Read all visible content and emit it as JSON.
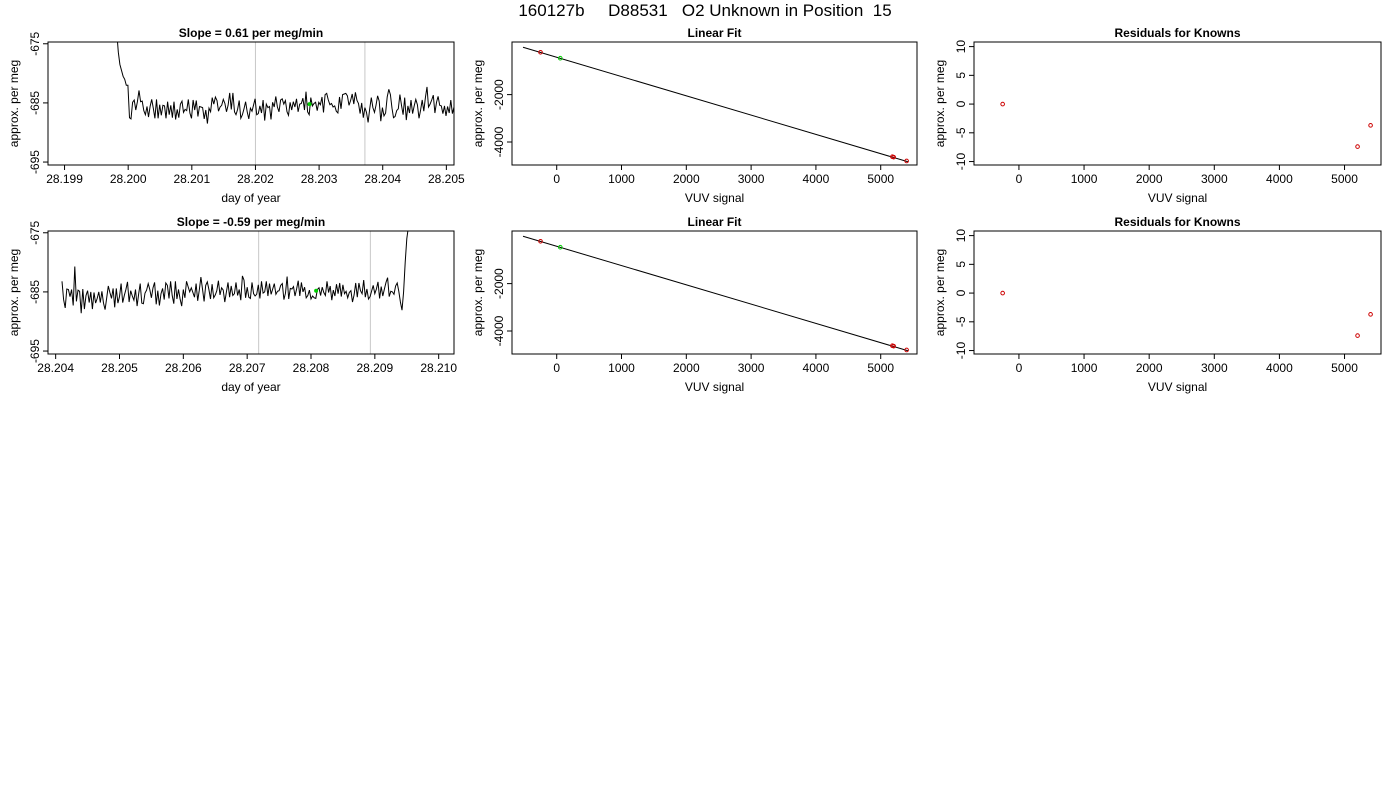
{
  "header": {
    "title": "160127b     D88531   O2 Unknown in Position  15"
  },
  "colors": {
    "line": "#000000",
    "known_point": "#cd0000",
    "unknown_point": "#00cd00",
    "marker_line": "#c8c8c8"
  },
  "chart_data": [
    {
      "type": "line",
      "title": "Slope =  0.61  per meg/min",
      "xlabel": "day of year",
      "ylabel": "approx. per meg",
      "xlim": [
        28.19874,
        28.20512
      ],
      "ylim": [
        -695.5,
        -674.7
      ],
      "xticks": [
        28.199,
        28.2,
        28.201,
        28.202,
        28.203,
        28.204,
        28.205
      ],
      "xtick_labels": [
        "28.199",
        "28.200",
        "28.201",
        "28.202",
        "28.203",
        "28.204",
        "28.205"
      ],
      "yticks": [
        -675,
        -685,
        -695
      ],
      "ytick_labels": [
        "-675",
        "-685",
        "-695"
      ],
      "vlines": [
        28.202,
        28.20372
      ],
      "series": [
        {
          "x_start": 28.19982,
          "x_step": 2.5e-05,
          "values": [
            -672.9,
            -676.4,
            -678.5,
            -679.5,
            -680.5,
            -681.0,
            -682.0,
            -682.0,
            -687.5,
            -687.7,
            -684.9,
            -684.5,
            -686.2,
            -684.8,
            -682.9,
            -684.8,
            -684.7,
            -686.3,
            -687.0,
            -685.6,
            -687.4,
            -685.6,
            -684.4,
            -685.9,
            -687.6,
            -684.4,
            -687.6,
            -685.3,
            -687.1,
            -685.4,
            -685.5,
            -687.6,
            -684.8,
            -687.0,
            -685.4,
            -687.5,
            -684.8,
            -687.8,
            -686.1,
            -687.5,
            -685.2,
            -684.7,
            -686.6,
            -686.1,
            -686.3,
            -684.4,
            -686.7,
            -687.6,
            -684.5,
            -686.2,
            -684.6,
            -687.3,
            -685.6,
            -685.7,
            -685.8,
            -687.7,
            -686.2,
            -688.5,
            -685.9,
            -686.5,
            -684.1,
            -685.2,
            -684.0,
            -684.6,
            -686.4,
            -685.7,
            -685.4,
            -684.4,
            -685.1,
            -686.5,
            -685.4,
            -683.3,
            -686.1,
            -683.3,
            -686.5,
            -687.0,
            -686.1,
            -684.6,
            -687.6,
            -687.0,
            -686.0,
            -684.8,
            -686.5,
            -687.7,
            -685.9,
            -686.4,
            -685.4,
            -684.3,
            -687.0,
            -686.8,
            -685.5,
            -686.7,
            -684.5,
            -688.0,
            -685.2,
            -685.8,
            -685.6,
            -687.8,
            -684.9,
            -685.7,
            -683.9,
            -685.7,
            -686.5,
            -684.5,
            -684.3,
            -685.2,
            -684.6,
            -686.5,
            -687.1,
            -684.9,
            -686.2,
            -684.8,
            -685.7,
            -684.3,
            -686.5,
            -685.2,
            -685.1,
            -684.2,
            -686.2,
            -683.1,
            -686.5,
            -687.0,
            -684.1,
            -685.5,
            -685.1,
            -684.9,
            -686.3,
            -684.9,
            -685.3,
            -684.0,
            -686.6,
            -683.6,
            -683.4,
            -684.5,
            -685.3,
            -685.1,
            -685.7,
            -685.5,
            -686.4,
            -686.7,
            -684.0,
            -686.0,
            -683.6,
            -683.5,
            -683.4,
            -683.8,
            -685.4,
            -684.6,
            -683.5,
            -685.2,
            -683.2,
            -684.6,
            -685.1,
            -686.8,
            -685.0,
            -687.5,
            -685.8,
            -686.6,
            -688.3,
            -686.0,
            -684.1,
            -685.8,
            -686.6,
            -685.4,
            -683.8,
            -684.7,
            -688.1,
            -685.8,
            -687.2,
            -686.7,
            -684.0,
            -682.7,
            -683.6,
            -685.9,
            -687.5,
            -687.3,
            -686.3,
            -686.0,
            -683.6,
            -685.4,
            -687.0,
            -684.1,
            -687.9,
            -685.5,
            -686.7,
            -684.5,
            -686.8,
            -685.5,
            -684.4,
            -685.3,
            -687.6,
            -686.2,
            -684.5,
            -686.4,
            -684.1,
            -682.3,
            -685.7,
            -685.2,
            -684.5,
            -683.7,
            -686.7,
            -684.9,
            -683.9,
            -685.4,
            -685.5,
            -686.8,
            -685.5,
            -687.2,
            -685.6,
            -686.7,
            -684.5,
            -686.8,
            -685.7,
            -684.2,
            -684.9,
            -684.9
          ]
        }
      ],
      "highlight_x": 28.20285,
      "highlight_y": -685.2
    },
    {
      "type": "scatter",
      "title": "Linear Fit",
      "xlabel": "VUV signal",
      "ylabel": "approx. per meg",
      "xlim": [
        -690,
        5560
      ],
      "ylim": [
        -4970,
        220
      ],
      "xticks": [
        0,
        1000,
        2000,
        3000,
        4000,
        5000
      ],
      "xtick_labels": [
        "0",
        "1000",
        "2000",
        "3000",
        "4000",
        "5000"
      ],
      "yticks": [
        -2000,
        -4000
      ],
      "ytick_labels": [
        "-2000",
        "-4000"
      ],
      "fit_line": {
        "x": [
          -520,
          5420
        ],
        "y": [
          -2,
          -4834
        ]
      },
      "known_points": {
        "x": [
          -250,
          5180,
          5200,
          5400
        ],
        "y": [
          -215,
          -4620,
          -4640,
          -4800
        ]
      },
      "unknown_points": {
        "x": [
          55
        ],
        "y": [
          -465
        ]
      }
    },
    {
      "type": "scatter",
      "title": "Residuals for Knowns",
      "xlabel": "VUV signal",
      "ylabel": "approx. per meg",
      "xlim": [
        -690,
        5560
      ],
      "ylim": [
        -10.6,
        10.8
      ],
      "xticks": [
        0,
        1000,
        2000,
        3000,
        4000,
        5000
      ],
      "xtick_labels": [
        "0",
        "1000",
        "2000",
        "3000",
        "4000",
        "5000"
      ],
      "yticks": [
        10,
        5,
        0,
        -5,
        -10
      ],
      "ytick_labels": [
        "10",
        "5",
        "0",
        "-5",
        "-10"
      ],
      "known_points": {
        "x": [
          -250,
          5200,
          5400
        ],
        "y": [
          0.0,
          -7.4,
          -3.7
        ]
      }
    },
    {
      "type": "line",
      "title": "Slope =  -0.59  per meg/min",
      "xlabel": "day of year",
      "ylabel": "approx. per meg",
      "xlim": [
        28.20388,
        28.21024
      ],
      "ylim": [
        -695.5,
        -674.7
      ],
      "xticks": [
        28.204,
        28.205,
        28.206,
        28.207,
        28.208,
        28.209,
        28.21
      ],
      "xtick_labels": [
        "28.204",
        "28.205",
        "28.206",
        "28.207",
        "28.208",
        "28.209",
        "28.210"
      ],
      "yticks": [
        -675,
        -685,
        -695
      ],
      "ytick_labels": [
        "-675",
        "-685",
        "-695"
      ],
      "vlines": [
        28.20718,
        28.20893
      ],
      "series": [
        {
          "x_start": 28.2041,
          "x_step": 2.5e-05,
          "values": [
            -683.2,
            -686.3,
            -687.7,
            -684.5,
            -684.6,
            -685.8,
            -684.6,
            -687.3,
            -680.7,
            -686.6,
            -684.7,
            -684.9,
            -688.6,
            -684.5,
            -687.9,
            -685.6,
            -684.8,
            -686.8,
            -685.0,
            -687.9,
            -685.1,
            -686.9,
            -686.1,
            -685.0,
            -686.8,
            -684.9,
            -686.9,
            -688.0,
            -686.0,
            -684.0,
            -685.1,
            -686.1,
            -684.4,
            -687.6,
            -684.4,
            -686.9,
            -685.8,
            -683.6,
            -686.8,
            -685.6,
            -684.6,
            -683.3,
            -686.7,
            -684.8,
            -685.7,
            -686.4,
            -684.6,
            -687.4,
            -685.4,
            -683.6,
            -686.9,
            -687.0,
            -685.2,
            -684.7,
            -683.6,
            -684.6,
            -686.0,
            -684.3,
            -683.4,
            -687.1,
            -684.8,
            -687.3,
            -685.3,
            -684.4,
            -686.3,
            -683.5,
            -683.9,
            -686.1,
            -683.2,
            -685.6,
            -687.0,
            -683.2,
            -686.2,
            -684.6,
            -686.2,
            -687.4,
            -684.6,
            -686.0,
            -683.2,
            -684.1,
            -685.0,
            -684.3,
            -685.1,
            -685.9,
            -683.6,
            -686.5,
            -684.7,
            -682.5,
            -684.5,
            -686.6,
            -683.9,
            -683.3,
            -684.6,
            -686.2,
            -683.7,
            -686.0,
            -685.5,
            -684.8,
            -683.1,
            -685.5,
            -684.3,
            -684.7,
            -686.7,
            -685.0,
            -683.4,
            -685.9,
            -684.0,
            -685.6,
            -685.3,
            -683.4,
            -685.6,
            -684.6,
            -686.4,
            -682.3,
            -683.0,
            -686.0,
            -684.2,
            -685.9,
            -686.1,
            -683.4,
            -685.3,
            -685.7,
            -685.4,
            -683.8,
            -686.1,
            -683.2,
            -685.2,
            -685.0,
            -683.2,
            -685.7,
            -683.6,
            -685.4,
            -684.5,
            -683.6,
            -685.4,
            -684.9,
            -684.8,
            -683.9,
            -683.6,
            -686.3,
            -685.2,
            -682.4,
            -686.2,
            -684.4,
            -684.5,
            -684.1,
            -685.7,
            -684.5,
            -683.1,
            -685.7,
            -683.4,
            -685.0,
            -684.2,
            -686.0,
            -685.6,
            -684.7,
            -686.2,
            -685.7,
            -686.0,
            -686.1,
            -684.6,
            -684.3,
            -685.6,
            -684.2,
            -685.1,
            -685.6,
            -683.2,
            -685.1,
            -684.0,
            -686.4,
            -684.7,
            -685.7,
            -683.7,
            -685.3,
            -683.5,
            -685.8,
            -683.8,
            -685.3,
            -684.9,
            -686.0,
            -685.1,
            -684.8,
            -686.7,
            -685.5,
            -683.5,
            -685.9,
            -683.5,
            -684.8,
            -685.3,
            -683.0,
            -685.9,
            -684.5,
            -686.2,
            -685.8,
            -684.8,
            -683.9,
            -685.3,
            -684.5,
            -683.3,
            -686.1,
            -684.1,
            -685.7,
            -684.5,
            -683.4,
            -682.6,
            -685.8,
            -684.9,
            -685.0,
            -685.4,
            -684.0,
            -683.5,
            -684.9,
            -686.7,
            -688.1,
            -685.0,
            -680.0,
            -676.0,
            -674.0
          ]
        }
      ],
      "highlight_x": 28.20808,
      "highlight_y": -684.8
    },
    {
      "type": "scatter",
      "title": "Linear Fit",
      "xlabel": "VUV signal",
      "ylabel": "approx. per meg",
      "xlim": [
        -690,
        5560
      ],
      "ylim": [
        -4970,
        220
      ],
      "xticks": [
        0,
        1000,
        2000,
        3000,
        4000,
        5000
      ],
      "xtick_labels": [
        "0",
        "1000",
        "2000",
        "3000",
        "4000",
        "5000"
      ],
      "yticks": [
        -2000,
        -4000
      ],
      "ytick_labels": [
        "-2000",
        "-4000"
      ],
      "fit_line": {
        "x": [
          -520,
          5420
        ],
        "y": [
          -2,
          -4834
        ]
      },
      "known_points": {
        "x": [
          -250,
          5180,
          5200,
          5400
        ],
        "y": [
          -215,
          -4620,
          -4640,
          -4800
        ]
      },
      "unknown_points": {
        "x": [
          55
        ],
        "y": [
          -465
        ]
      }
    },
    {
      "type": "scatter",
      "title": "Residuals for Knowns",
      "xlabel": "VUV signal",
      "ylabel": "approx. per meg",
      "xlim": [
        -690,
        5560
      ],
      "ylim": [
        -10.6,
        10.8
      ],
      "xticks": [
        0,
        1000,
        2000,
        3000,
        4000,
        5000
      ],
      "xtick_labels": [
        "0",
        "1000",
        "2000",
        "3000",
        "4000",
        "5000"
      ],
      "yticks": [
        10,
        5,
        0,
        -5,
        -10
      ],
      "ytick_labels": [
        "10",
        "5",
        "0",
        "-5",
        "-10"
      ],
      "known_points": {
        "x": [
          -250,
          5200,
          5400
        ],
        "y": [
          0.0,
          -7.4,
          -3.7
        ]
      }
    }
  ]
}
